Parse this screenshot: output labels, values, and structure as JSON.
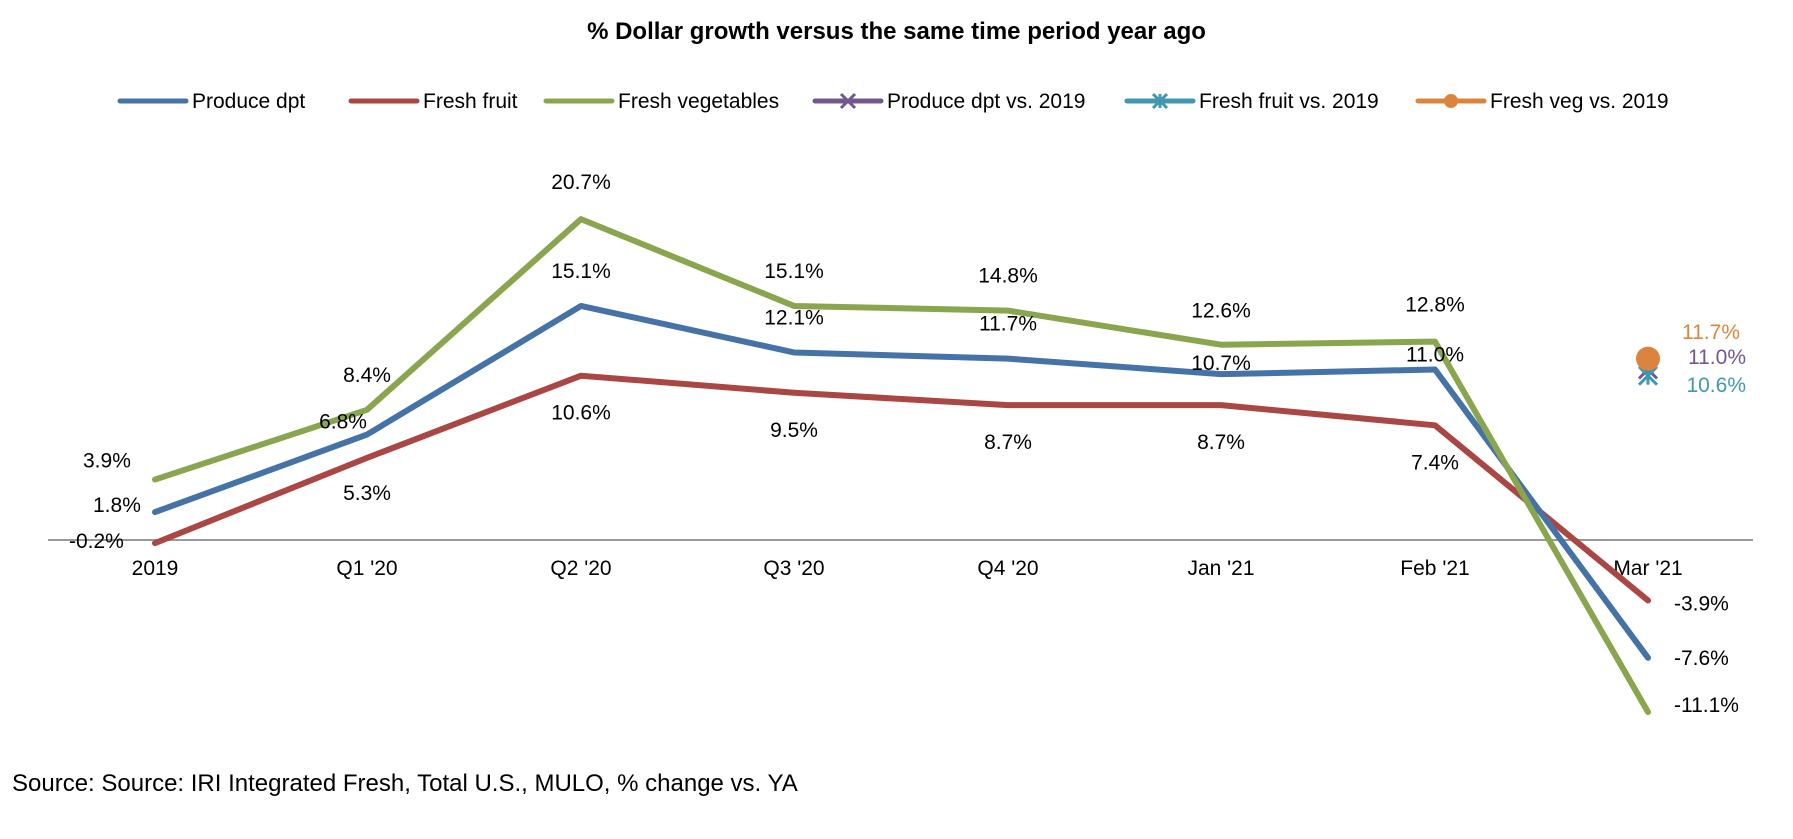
{
  "chart_data": {
    "type": "line",
    "title": "% Dollar growth versus the same time period year ago",
    "categories": [
      "2019",
      "Q1 '20",
      "Q2 '20",
      "Q3 '20",
      "Q4 '20",
      "Jan '21",
      "Feb '21",
      "Mar '21"
    ],
    "series": [
      {
        "name": "Produce dpt",
        "color": "#4572a7",
        "marker": "none",
        "values": [
          1.8,
          6.8,
          15.1,
          12.1,
          11.7,
          10.7,
          11.0,
          -7.6
        ],
        "labels": [
          "1.8%",
          "6.8%",
          "15.1%",
          "12.1%",
          "11.7%",
          "10.7%",
          "11.0%",
          "-7.6%"
        ]
      },
      {
        "name": "Fresh fruit",
        "color": "#aa4643",
        "marker": "none",
        "values": [
          -0.2,
          5.3,
          10.6,
          9.5,
          8.7,
          8.7,
          7.4,
          -3.9
        ],
        "labels": [
          "-0.2%",
          "5.3%",
          "10.6%",
          "9.5%",
          "8.7%",
          "8.7%",
          "7.4%",
          "-3.9%"
        ]
      },
      {
        "name": "Fresh vegetables",
        "color": "#89a54e",
        "marker": "none",
        "values": [
          3.9,
          8.4,
          20.7,
          15.1,
          14.8,
          12.6,
          12.8,
          -11.1
        ],
        "labels": [
          "3.9%",
          "8.4%",
          "20.7%",
          "15.1%",
          "14.8%",
          "12.6%",
          "12.8%",
          "-11.1%"
        ]
      },
      {
        "name": "Produce dpt vs. 2019",
        "color": "#71588f",
        "marker": "x",
        "values": [
          null,
          null,
          null,
          null,
          null,
          null,
          null,
          11.0
        ],
        "labels": [
          "",
          "",
          "",
          "",
          "",
          "",
          "",
          "11.0%"
        ]
      },
      {
        "name": "Fresh fruit vs. 2019",
        "color": "#4198af",
        "marker": "star",
        "values": [
          null,
          null,
          null,
          null,
          null,
          null,
          null,
          10.6
        ],
        "labels": [
          "",
          "",
          "",
          "",
          "",
          "",
          "",
          "10.6%"
        ]
      },
      {
        "name": "Fresh veg vs. 2019",
        "color": "#db843d",
        "marker": "circle",
        "values": [
          null,
          null,
          null,
          null,
          null,
          null,
          null,
          11.7
        ],
        "labels": [
          "",
          "",
          "",
          "",
          "",
          "",
          "",
          "11.7%"
        ]
      }
    ],
    "ylim": [
      -13,
      24
    ],
    "grid": false,
    "legend": "top"
  },
  "source": "Source: Source: IRI Integrated Fresh, Total U.S., MULO, % change vs. YA"
}
